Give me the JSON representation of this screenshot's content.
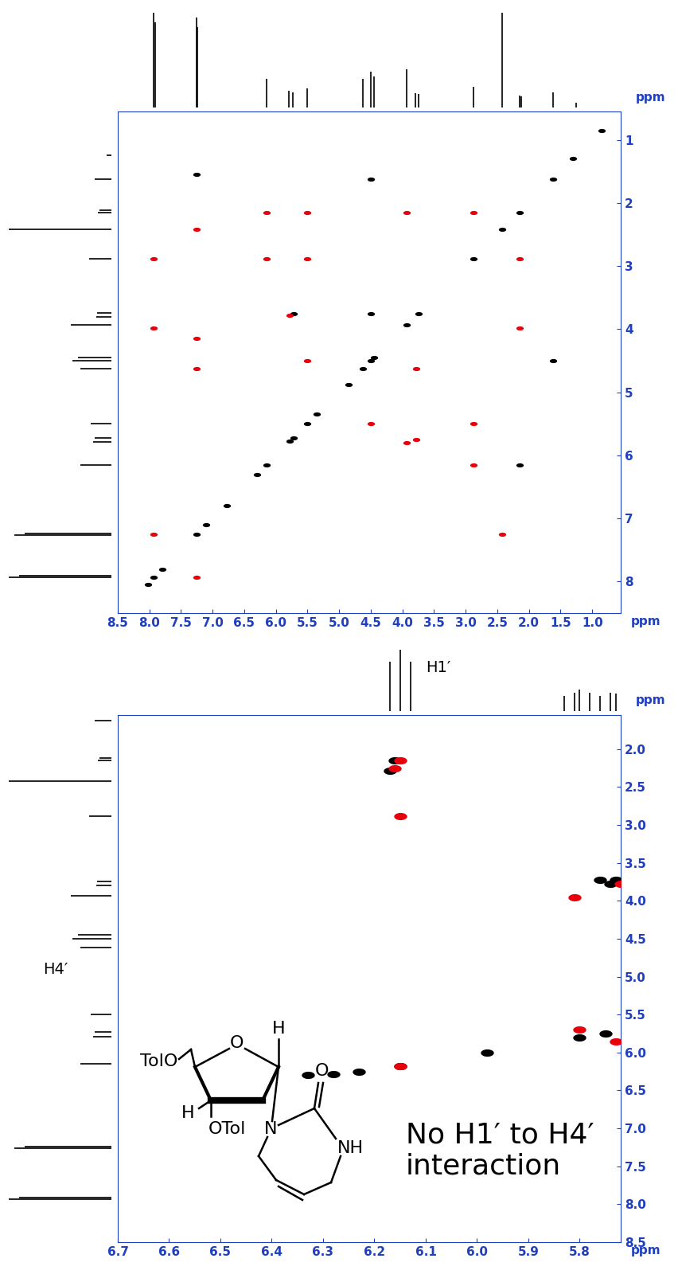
{
  "chart_data": [
    {
      "type": "scatter",
      "xlabel": "ppm",
      "ylabel": "ppm",
      "xlim": [
        8.5,
        0.55
      ],
      "ylim": [
        8.5,
        0.55
      ],
      "xticks": [
        8.5,
        8.0,
        7.5,
        7.0,
        6.5,
        6.0,
        5.5,
        5.0,
        4.5,
        4.0,
        3.5,
        3.0,
        2.5,
        2.0,
        1.5,
        1.0
      ],
      "yticks": [
        1,
        2,
        3,
        4,
        5,
        6,
        7,
        8
      ],
      "series": [
        {
          "color": "#000000",
          "x": [
            8.02,
            7.93,
            7.8,
            7.25,
            7.1,
            6.78,
            6.3,
            6.15,
            5.78,
            5.72,
            5.5,
            5.35,
            4.85,
            4.62,
            4.5,
            4.45,
            3.93,
            3.75,
            2.88,
            2.42,
            2.15,
            1.62,
            1.3,
            0.85,
            7.25,
            4.5,
            5.72,
            4.5,
            1.62,
            2.15
          ],
          "y": [
            8.05,
            7.93,
            7.8,
            7.25,
            7.1,
            6.8,
            6.3,
            6.15,
            5.78,
            5.72,
            5.5,
            5.35,
            4.88,
            4.62,
            4.5,
            4.45,
            3.93,
            3.75,
            2.88,
            2.42,
            2.15,
            1.62,
            1.3,
            0.85,
            1.55,
            1.62,
            3.75,
            3.75,
            4.5,
            6.15
          ]
        },
        {
          "color": "#e8000b",
          "x": [
            7.25,
            6.15,
            5.5,
            3.93,
            2.88,
            2.15,
            6.15,
            5.5,
            7.93,
            5.78,
            7.93,
            2.15,
            7.25,
            7.25,
            5.5,
            3.78,
            4.5,
            2.88,
            3.93,
            3.78,
            2.88,
            7.25,
            7.93,
            2.42
          ],
          "y": [
            2.42,
            2.15,
            2.15,
            2.15,
            2.15,
            2.88,
            2.88,
            2.88,
            2.88,
            3.78,
            3.98,
            3.98,
            4.15,
            4.62,
            4.5,
            4.62,
            5.5,
            5.5,
            5.8,
            5.75,
            6.15,
            7.93,
            7.25,
            7.25
          ]
        }
      ],
      "projection_x": {
        "x": [
          7.93,
          7.91,
          7.26,
          7.24,
          6.15,
          5.79,
          5.73,
          5.5,
          4.62,
          4.5,
          4.45,
          3.93,
          3.8,
          3.74,
          2.88,
          2.42,
          2.15,
          2.12,
          1.62,
          1.25
        ],
        "values": [
          1.0,
          0.9,
          0.95,
          0.85,
          0.3,
          0.18,
          0.16,
          0.2,
          0.3,
          0.38,
          0.33,
          0.4,
          0.15,
          0.14,
          0.22,
          1.0,
          0.13,
          0.12,
          0.16,
          0.05
        ]
      },
      "projection_y": {
        "x": [
          7.93,
          7.91,
          7.26,
          7.24,
          6.15,
          5.79,
          5.73,
          5.5,
          4.62,
          4.5,
          4.45,
          3.93,
          3.8,
          3.74,
          2.88,
          2.42,
          2.15,
          2.12,
          1.62,
          1.25
        ],
        "values": [
          1.0,
          0.9,
          0.95,
          0.85,
          0.3,
          0.18,
          0.16,
          0.2,
          0.3,
          0.38,
          0.33,
          0.4,
          0.15,
          0.14,
          0.22,
          1.0,
          0.13,
          0.12,
          0.16,
          0.05
        ]
      },
      "projection_ylim": [
        0,
        1.05
      ]
    },
    {
      "type": "scatter",
      "xlabel": "ppm",
      "ylabel": "ppm",
      "xlim": [
        6.7,
        5.72
      ],
      "ylim": [
        8.5,
        1.55
      ],
      "xticks": [
        6.7,
        6.6,
        6.5,
        6.4,
        6.3,
        6.2,
        6.1,
        6.0,
        5.9,
        5.8
      ],
      "yticks": [
        2.0,
        2.5,
        3.0,
        3.5,
        4.0,
        4.5,
        5.0,
        5.5,
        6.0,
        6.5,
        7.0,
        7.5,
        8.0,
        8.5
      ],
      "series": [
        {
          "color": "#000000",
          "x": [
            6.16,
            6.17,
            5.76,
            5.74,
            5.73,
            6.33,
            6.28,
            6.23,
            6.15,
            5.98,
            5.8,
            5.75
          ],
          "y": [
            2.15,
            2.28,
            3.72,
            3.78,
            3.72,
            6.3,
            6.28,
            6.25,
            6.18,
            6.0,
            5.8,
            5.75
          ]
        },
        {
          "color": "#e8000b",
          "x": [
            6.15,
            6.16,
            6.15,
            5.81,
            5.72,
            6.15,
            5.8,
            5.73
          ],
          "y": [
            2.15,
            2.25,
            2.88,
            3.95,
            3.78,
            6.18,
            5.7,
            5.85
          ]
        }
      ],
      "projection_x": {
        "x": [
          6.17,
          6.15,
          6.13,
          5.83,
          5.81,
          5.8,
          5.78,
          5.76,
          5.74,
          5.73
        ],
        "values": [
          0.8,
          1.0,
          0.8,
          0.25,
          0.3,
          0.35,
          0.3,
          0.25,
          0.3,
          0.28
        ]
      },
      "projection_y": {
        "x": [
          7.93,
          7.91,
          7.26,
          7.24,
          6.15,
          5.79,
          5.73,
          5.5,
          4.62,
          4.5,
          4.45,
          3.93,
          3.8,
          3.74,
          2.88,
          2.42,
          2.15,
          2.12,
          1.62
        ],
        "values": [
          1.0,
          0.9,
          0.95,
          0.85,
          0.3,
          0.18,
          0.16,
          0.2,
          0.3,
          0.38,
          0.33,
          0.4,
          0.15,
          0.14,
          0.22,
          1.0,
          0.13,
          0.12,
          0.16
        ]
      },
      "projection_ylim": [
        0,
        1.05
      ],
      "annotations": [
        "H1′",
        "H4′",
        "No H1′ to H4′ interaction"
      ],
      "structure_labels": [
        "TolO",
        "O",
        "H",
        "H",
        "OTol",
        "N",
        "O",
        "NH"
      ]
    }
  ]
}
